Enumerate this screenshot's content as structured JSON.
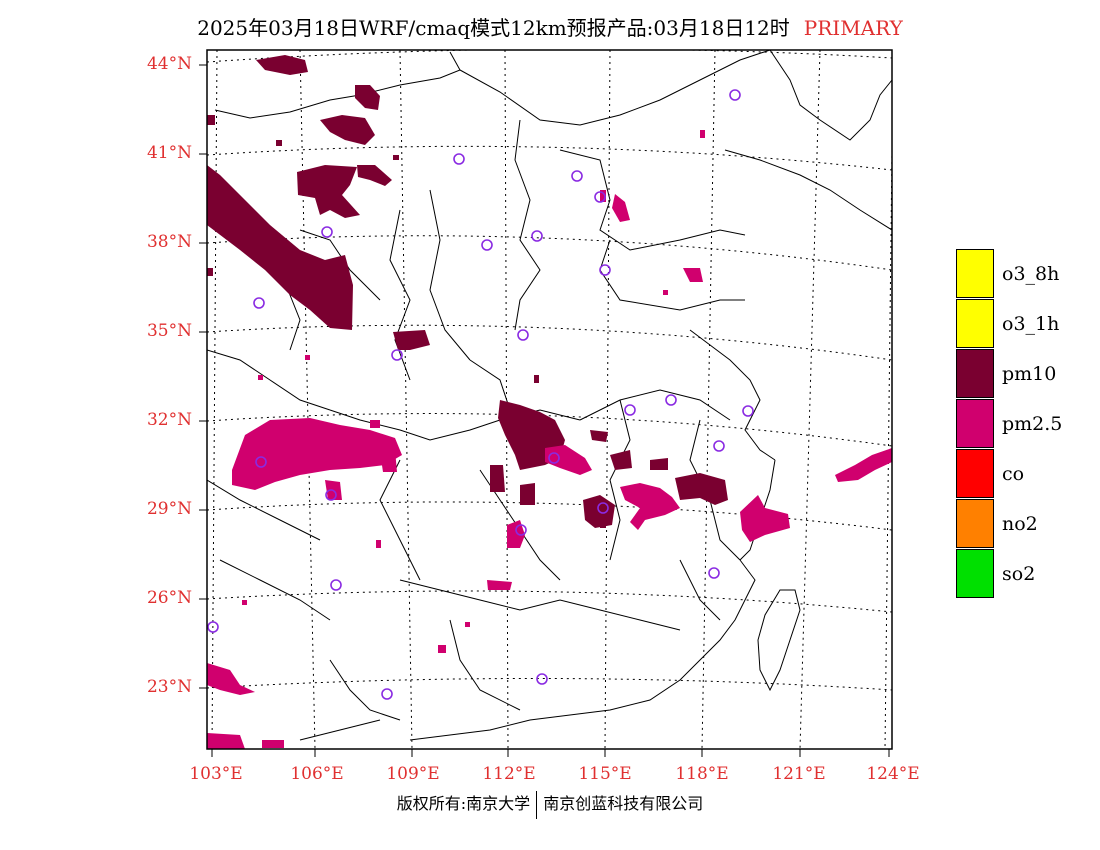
{
  "title": {
    "main": "2025年03月18日WRF/cmaq模式12km预报产品:03月18日12时",
    "tag": "PRIMARY"
  },
  "lat_labels": [
    "44°N",
    "41°N",
    "38°N",
    "35°N",
    "32°N",
    "29°N",
    "26°N",
    "23°N"
  ],
  "lon_labels": [
    "103°E",
    "106°E",
    "109°E",
    "112°E",
    "115°E",
    "118°E",
    "121°E",
    "124°E"
  ],
  "legend": [
    {
      "label": "o3_8h",
      "color": "#ffff00"
    },
    {
      "label": "o3_1h",
      "color": "#ffff00"
    },
    {
      "label": "pm10",
      "color": "#7a0030"
    },
    {
      "label": "pm2.5",
      "color": "#d0006e"
    },
    {
      "label": "co",
      "color": "#ff0000"
    },
    {
      "label": "no2",
      "color": "#ff8000"
    },
    {
      "label": "so2",
      "color": "#00e000"
    }
  ],
  "copyright": {
    "left": "版权所有:南京大学",
    "right": "南京创蓝科技有限公司"
  },
  "colors": {
    "pm10": "#7a0030",
    "pm25": "#d0006e",
    "station": "#8a2be2",
    "label": "#e03030"
  }
}
